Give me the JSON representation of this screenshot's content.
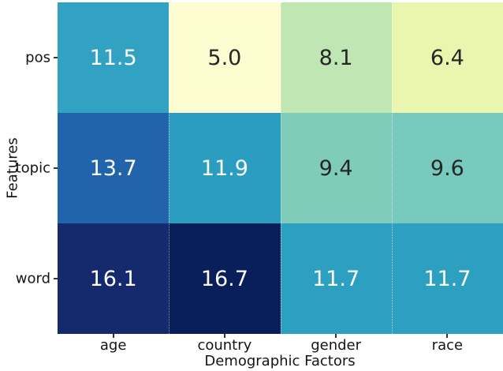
{
  "figure": {
    "background": "#ffffff",
    "axis_text_color": "#151515",
    "tick_mark_color": "#333333"
  },
  "chart_data": {
    "type": "heatmap",
    "title": "",
    "xlabel": "Demographic Factors",
    "ylabel": "Features",
    "columns": [
      "age",
      "country",
      "gender",
      "race"
    ],
    "rows": [
      "pos",
      "topic",
      "word"
    ],
    "values": [
      [
        11.5,
        5.0,
        8.1,
        6.4
      ],
      [
        13.7,
        11.9,
        9.4,
        9.6
      ],
      [
        16.1,
        16.7,
        11.7,
        11.7
      ]
    ],
    "labels": [
      [
        "11.5",
        "5.0",
        "8.1",
        "6.4"
      ],
      [
        "13.7",
        "11.9",
        "9.4",
        "9.6"
      ],
      [
        "16.1",
        "16.7",
        "11.7",
        "11.7"
      ]
    ],
    "cell_colors": [
      [
        "#31a2c2",
        "#fdfdd1",
        "#c0e6b4",
        "#eaf5ae"
      ],
      [
        "#2264ab",
        "#2b9dc1",
        "#7fccbb",
        "#77cabd"
      ],
      [
        "#15296f",
        "#091f5b",
        "#2da0c2",
        "#2da0c2"
      ]
    ],
    "colormap": "YlGnBu",
    "vmin": 5.0,
    "vmax": 16.7,
    "annotation_color_on_dark": "#ffffff",
    "annotation_color_on_light": "#262626",
    "legend": "none",
    "colorbar": "none",
    "grid": "dotted-white-column-separators"
  }
}
